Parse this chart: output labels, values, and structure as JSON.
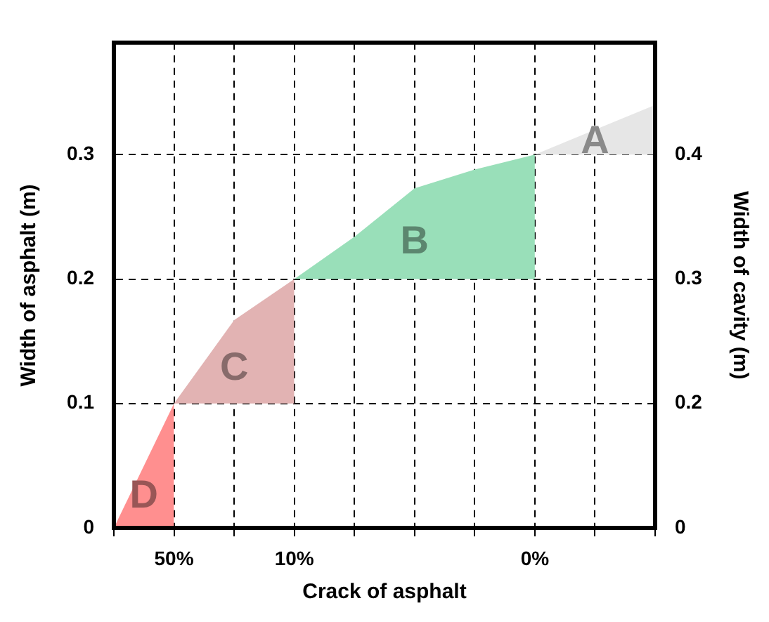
{
  "chart_data": {
    "type": "area",
    "xlabel": "Crack of asphalt",
    "ylabel": "Width of asphalt (m)",
    "y2label": "Width of cavity (m)",
    "categories": [
      null,
      "50%",
      null,
      "10%",
      null,
      null,
      null,
      "0%",
      null,
      null
    ],
    "series": [
      {
        "name": "D",
        "color": "#ff8f8f",
        "values": [
          0,
          0.1,
          null,
          null,
          null,
          null,
          null,
          null,
          null,
          null
        ]
      },
      {
        "name": "C",
        "color": "#e2b3b3",
        "values": [
          null,
          0.1,
          0.167,
          0.2,
          null,
          null,
          null,
          null,
          null,
          null
        ]
      },
      {
        "name": "B",
        "color": "#99dfb9",
        "values": [
          null,
          null,
          null,
          0.2,
          0.234,
          0.273,
          0.288,
          0.3,
          null,
          null
        ]
      },
      {
        "name": "A",
        "color": "#e6e6e6",
        "values": [
          null,
          null,
          null,
          null,
          null,
          null,
          null,
          0.3,
          0.32,
          0.34
        ]
      }
    ],
    "ylim": [
      0,
      0.39
    ],
    "yticks": [
      0,
      0.1,
      0.2,
      0.3
    ],
    "y2lim": [
      0.1,
      0.49
    ],
    "y2ticks": [
      {
        "value": 0.1,
        "label": "0"
      },
      0.2,
      0.3,
      0.4
    ],
    "grid": true,
    "legend": false
  }
}
